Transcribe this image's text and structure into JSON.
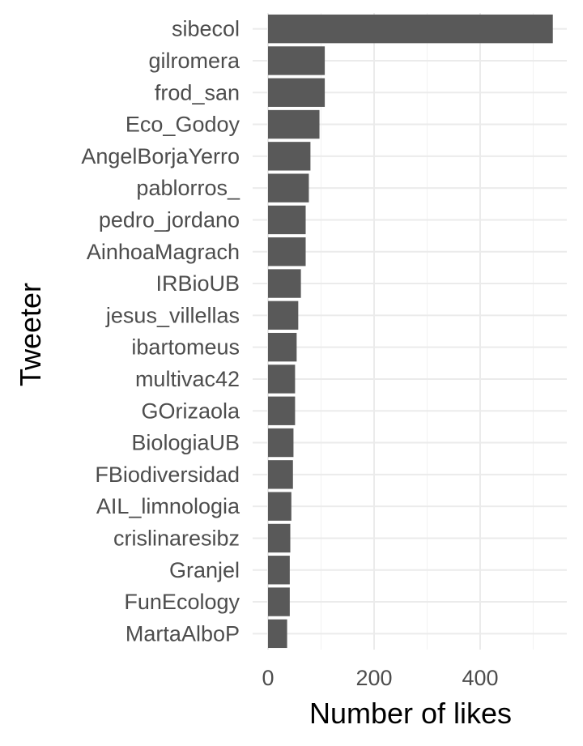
{
  "chart_data": {
    "type": "bar",
    "orientation": "horizontal",
    "title": "",
    "xlabel": "Number of likes",
    "ylabel": "Tweeter",
    "xlim": [
      0,
      560
    ],
    "xticks": [
      0,
      200,
      400
    ],
    "grid": true,
    "bar_color": "#595959",
    "categories": [
      "sibecol",
      "gilromera",
      "frod_san",
      "Eco_Godoy",
      "AngelBorjaYerro",
      "pablorros_",
      "pedro_jordano",
      "AinhoaMagrach",
      "IRBioUB",
      "jesus_villellas",
      "ibartomeus",
      "multivac42",
      "GOrizaola",
      "BiologiaUB",
      "FBiodiversidad",
      "AIL_limnologia",
      "crislinaresibz",
      "Granjel",
      "FunEcology",
      "MartaAlboP"
    ],
    "values": [
      537,
      107,
      107,
      97,
      80,
      77,
      71,
      71,
      62,
      57,
      54,
      51,
      51,
      48,
      47,
      44,
      42,
      41,
      41,
      36
    ]
  }
}
